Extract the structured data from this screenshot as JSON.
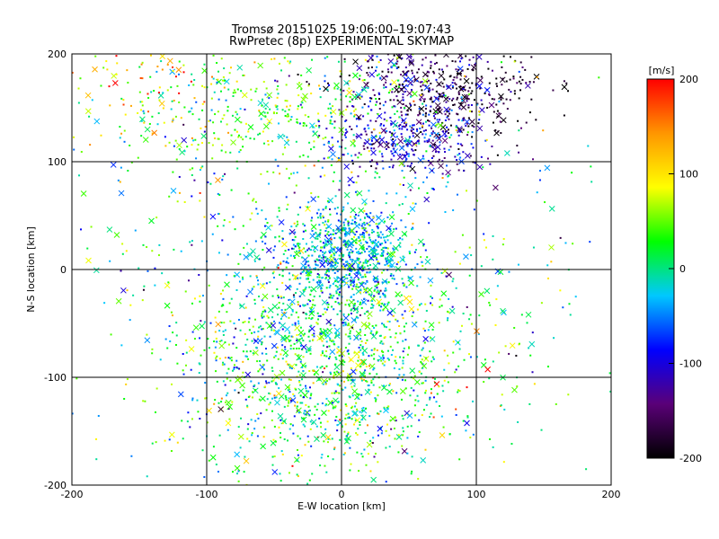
{
  "chart_data": {
    "type": "scatter",
    "title": "Tromsø 20151025 19:06:00–19:07:43",
    "subtitle": "RwPretec (8p) EXPERIMENTAL SKYMAP",
    "xlabel": "E-W location [km]",
    "ylabel": "N-S location [km]",
    "xlim": [
      -200,
      200
    ],
    "ylim": [
      -200,
      200
    ],
    "xticks": [
      "-200",
      "-100",
      "0",
      "100",
      "200"
    ],
    "yticks": [
      "-200",
      "-100",
      "0",
      "100",
      "200"
    ],
    "grid": true,
    "colorbar": {
      "label": "[m/s]",
      "range": [
        -200,
        200
      ],
      "ticks": [
        "-200",
        "-100",
        "0",
        "100",
        "200"
      ],
      "colors": [
        "#000000",
        "#5a0078",
        "#0000ff",
        "#00c8ff",
        "#00ff00",
        "#ffff00",
        "#ff9600",
        "#ff0000"
      ]
    },
    "markers": [
      "dot",
      "cross"
    ],
    "clusters": [
      {
        "x": 5,
        "y": 15,
        "sx": 25,
        "sy": 25,
        "n": 700,
        "v": -30,
        "vs": 35
      },
      {
        "x": -5,
        "y": -60,
        "sx": 55,
        "sy": 55,
        "n": 900,
        "v": 10,
        "vs": 50
      },
      {
        "x": -15,
        "y": -120,
        "sx": 50,
        "sy": 40,
        "n": 500,
        "v": 20,
        "vs": 55
      },
      {
        "x": 50,
        "y": 120,
        "sx": 30,
        "sy": 20,
        "n": 350,
        "v": -110,
        "vs": 40
      },
      {
        "x": 60,
        "y": 175,
        "sx": 35,
        "sy": 20,
        "n": 300,
        "v": -150,
        "vs": 45
      },
      {
        "x": 100,
        "y": 165,
        "sx": 30,
        "sy": 25,
        "n": 150,
        "v": -190,
        "vs": 20
      },
      {
        "x": -50,
        "y": 150,
        "sx": 60,
        "sy": 35,
        "n": 450,
        "v": 40,
        "vs": 45
      },
      {
        "x": 0,
        "y": 0,
        "sx": 110,
        "sy": 110,
        "n": 600,
        "v": 0,
        "vs": 70
      },
      {
        "x": -140,
        "y": 170,
        "sx": 30,
        "sy": 25,
        "n": 60,
        "v": 140,
        "vs": 60
      }
    ]
  }
}
